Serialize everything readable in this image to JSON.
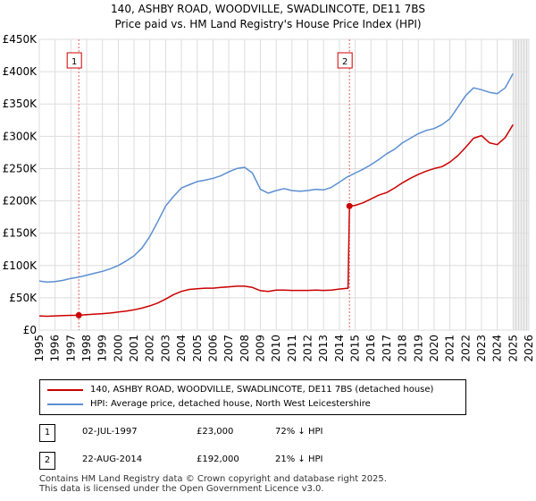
{
  "chart_data": {
    "type": "line",
    "title": "140, ASHBY ROAD, WOODVILLE, SWADLINCOTE, DE11 7BS",
    "subtitle": "Price paid vs. HM Land Registry's House Price Index (HPI)",
    "xlabel": "",
    "ylabel": "",
    "xlim": [
      1995,
      2026
    ],
    "ylim": [
      0,
      450000
    ],
    "x_ticks": [
      "1995",
      "1996",
      "1997",
      "1998",
      "1999",
      "2000",
      "2001",
      "2002",
      "2003",
      "2004",
      "2005",
      "2006",
      "2007",
      "2008",
      "2009",
      "2010",
      "2011",
      "2012",
      "2013",
      "2014",
      "2015",
      "2016",
      "2017",
      "2018",
      "2019",
      "2020",
      "2021",
      "2022",
      "2023",
      "2024",
      "2025",
      "2026"
    ],
    "y_ticks": [
      {
        "value": 0,
        "label": "£0"
      },
      {
        "value": 50000,
        "label": "£50K"
      },
      {
        "value": 100000,
        "label": "£100K"
      },
      {
        "value": 150000,
        "label": "£150K"
      },
      {
        "value": 200000,
        "label": "£200K"
      },
      {
        "value": 250000,
        "label": "£250K"
      },
      {
        "value": 300000,
        "label": "£300K"
      },
      {
        "value": 350000,
        "label": "£350K"
      },
      {
        "value": 400000,
        "label": "£400K"
      },
      {
        "value": 450000,
        "label": "£450K"
      }
    ],
    "grid": true,
    "shaded_future_from": 2025.0,
    "series": [
      {
        "name": "140, ASHBY ROAD, WOODVILLE, SWADLINCOTE, DE11 7BS (detached house)",
        "color": "#cc0000",
        "x": [
          1995.0,
          1995.5,
          1996.0,
          1996.5,
          1997.0,
          1997.5,
          1998.0,
          1998.5,
          1999.0,
          1999.5,
          2000.0,
          2000.5,
          2001.0,
          2001.5,
          2002.0,
          2002.5,
          2003.0,
          2003.5,
          2004.0,
          2004.5,
          2005.0,
          2005.5,
          2006.0,
          2006.5,
          2007.0,
          2007.5,
          2008.0,
          2008.5,
          2009.0,
          2009.5,
          2010.0,
          2010.5,
          2011.0,
          2011.5,
          2012.0,
          2012.5,
          2013.0,
          2013.5,
          2014.0,
          2014.55,
          2014.64,
          2015.0,
          2015.5,
          2016.0,
          2016.5,
          2017.0,
          2017.5,
          2018.0,
          2018.5,
          2019.0,
          2019.5,
          2020.0,
          2020.5,
          2021.0,
          2021.5,
          2022.0,
          2022.5,
          2023.0,
          2023.5,
          2024.0,
          2024.5,
          2025.0
        ],
        "values": [
          22000,
          21500,
          22000,
          22500,
          22800,
          23000,
          24000,
          24800,
          25500,
          26500,
          28000,
          29500,
          31500,
          34000,
          37500,
          42000,
          48000,
          55000,
          60000,
          63000,
          64000,
          65000,
          65000,
          66000,
          67000,
          68000,
          68000,
          66000,
          61000,
          60000,
          62000,
          62000,
          61500,
          61500,
          61500,
          62000,
          61500,
          62000,
          63500,
          65000,
          192000,
          193000,
          197000,
          203000,
          209000,
          213000,
          220000,
          228000,
          235000,
          241000,
          246000,
          250000,
          253000,
          260000,
          270000,
          283000,
          297000,
          301000,
          290000,
          287000,
          298000,
          318000
        ]
      },
      {
        "name": "HPI: Average price, detached house, North West Leicestershire",
        "color": "#5b8fd1",
        "x": [
          1995.0,
          1995.5,
          1996.0,
          1996.5,
          1997.0,
          1997.5,
          1998.0,
          1998.5,
          1999.0,
          1999.5,
          2000.0,
          2000.5,
          2001.0,
          2001.5,
          2002.0,
          2002.5,
          2003.0,
          2003.5,
          2004.0,
          2004.5,
          2005.0,
          2005.5,
          2006.0,
          2006.5,
          2007.0,
          2007.5,
          2008.0,
          2008.5,
          2009.0,
          2009.5,
          2010.0,
          2010.5,
          2011.0,
          2011.5,
          2012.0,
          2012.5,
          2013.0,
          2013.5,
          2014.0,
          2014.5,
          2015.0,
          2015.5,
          2016.0,
          2016.5,
          2017.0,
          2017.5,
          2018.0,
          2018.5,
          2019.0,
          2019.5,
          2020.0,
          2020.5,
          2021.0,
          2021.5,
          2022.0,
          2022.5,
          2023.0,
          2023.5,
          2024.0,
          2024.5,
          2025.0
        ],
        "values": [
          76000,
          74500,
          75000,
          77000,
          80000,
          82000,
          85000,
          88000,
          91000,
          95000,
          100000,
          107000,
          115000,
          127000,
          145000,
          168000,
          192000,
          207000,
          220000,
          225000,
          230000,
          232000,
          235000,
          239000,
          245000,
          250000,
          252000,
          243000,
          218000,
          212000,
          216000,
          219000,
          216000,
          215000,
          216000,
          218000,
          217000,
          221000,
          229000,
          237000,
          243000,
          249000,
          256000,
          264000,
          273000,
          280000,
          290000,
          297000,
          304000,
          309000,
          312000,
          318000,
          327000,
          345000,
          363000,
          375000,
          372000,
          368000,
          366000,
          375000,
          397000
        ]
      }
    ],
    "annotations": [
      {
        "id": "1",
        "x": 1997.5,
        "y": 23000
      },
      {
        "id": "2",
        "x": 2014.64,
        "y": 192000
      }
    ]
  },
  "legend": {
    "items": [
      {
        "label": "140, ASHBY ROAD, WOODVILLE, SWADLINCOTE, DE11 7BS (detached house)",
        "color": "#cc0000"
      },
      {
        "label": "HPI: Average price, detached house, North West Leicestershire",
        "color": "#5b8fd1"
      }
    ]
  },
  "transactions": [
    {
      "id": "1",
      "date": "02-JUL-1997",
      "price": "£23,000",
      "hpi": "72% ↓ HPI"
    },
    {
      "id": "2",
      "date": "22-AUG-2014",
      "price": "£192,000",
      "hpi": "21% ↓ HPI"
    }
  ],
  "footer": {
    "line1": "Contains HM Land Registry data © Crown copyright and database right 2025.",
    "line2": "This data is licensed under the Open Government Licence v3.0."
  }
}
